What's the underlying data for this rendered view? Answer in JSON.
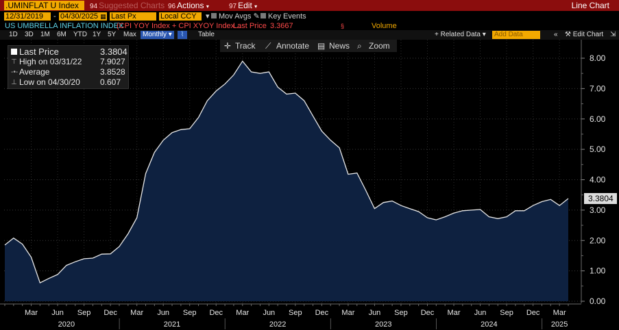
{
  "topbar": {
    "ticker": ".UMINFLAT U Index",
    "suggested_num": "94",
    "suggested": "Suggested Charts",
    "actions_num": "96",
    "actions": "Actions",
    "edit_num": "97",
    "edit": "Edit",
    "chart_type": "Line Chart"
  },
  "fields": {
    "start_date": "12/31/2019",
    "end_date": "04/30/2025",
    "field": "Last Px",
    "currency": "Local CCY",
    "mov_avgs": "Mov Avgs",
    "key_events": "Key Events"
  },
  "title_row": {
    "name": "US UMBRELLA INFLATION INDEX",
    "formula": "(CPI YOY Index + CPI XYOY Index...",
    "last_price_label": "Last Price",
    "last_price_value": "3.3667",
    "volume_label": "Volume"
  },
  "toolbar": {
    "periods": [
      "1D",
      "3D",
      "1M",
      "6M",
      "YTD",
      "1Y",
      "5Y",
      "Max"
    ],
    "frequency": "Monthly",
    "table": "Table",
    "related_data": "+ Related Data",
    "add_data_placeholder": "Add Data",
    "edit_chart": "Edit Chart"
  },
  "mid_tools": {
    "track": "Track",
    "annotate": "Annotate",
    "news": "News",
    "zoom": "Zoom"
  },
  "legend": {
    "last_price_label": "Last Price",
    "last_price_value": "3.3804",
    "high_label": "High on 03/31/22",
    "high_value": "7.9027",
    "average_label": "Average",
    "average_value": "3.8528",
    "low_label": "Low on 04/30/20",
    "low_value": "0.607"
  },
  "colors": {
    "area_fill": "#0e2140",
    "line": "#e8e8e8",
    "accent": "#f2a900",
    "topbar": "#8b0d0d"
  },
  "chart_data": {
    "type": "area",
    "ylim": [
      0,
      8.4
    ],
    "y_ticks": [
      "0.00",
      "1.00",
      "2.00",
      "3.00",
      "4.00",
      "5.00",
      "6.00",
      "7.00",
      "8.00"
    ],
    "y_tick_values": [
      0,
      1,
      2,
      3,
      4,
      5,
      6,
      7,
      8
    ],
    "last_value_label": "3.3804",
    "x_month_labels": [
      {
        "label": "Mar",
        "month": "2020-03"
      },
      {
        "label": "Jun",
        "month": "2020-06"
      },
      {
        "label": "Sep",
        "month": "2020-09"
      },
      {
        "label": "Dec",
        "month": "2020-12"
      },
      {
        "label": "Mar",
        "month": "2021-03"
      },
      {
        "label": "Jun",
        "month": "2021-06"
      },
      {
        "label": "Sep",
        "month": "2021-09"
      },
      {
        "label": "Dec",
        "month": "2021-12"
      },
      {
        "label": "Mar",
        "month": "2022-03"
      },
      {
        "label": "Jun",
        "month": "2022-06"
      },
      {
        "label": "Sep",
        "month": "2022-09"
      },
      {
        "label": "Dec",
        "month": "2022-12"
      },
      {
        "label": "Mar",
        "month": "2023-03"
      },
      {
        "label": "Jun",
        "month": "2023-06"
      },
      {
        "label": "Sep",
        "month": "2023-09"
      },
      {
        "label": "Dec",
        "month": "2023-12"
      },
      {
        "label": "Mar",
        "month": "2024-03"
      },
      {
        "label": "Jun",
        "month": "2024-06"
      },
      {
        "label": "Sep",
        "month": "2024-09"
      },
      {
        "label": "Dec",
        "month": "2024-12"
      },
      {
        "label": "Mar",
        "month": "2025-03"
      }
    ],
    "x_year_labels": [
      {
        "label": "2020",
        "month": "2020-07"
      },
      {
        "label": "2021",
        "month": "2021-07"
      },
      {
        "label": "2022",
        "month": "2022-07"
      },
      {
        "label": "2023",
        "month": "2023-07"
      },
      {
        "label": "2024",
        "month": "2024-07"
      },
      {
        "label": "2025",
        "month": "2025-03"
      }
    ],
    "series": [
      {
        "values": [
          {
            "x": "2019-12",
            "y": 1.85
          },
          {
            "x": "2020-01",
            "y": 2.08
          },
          {
            "x": "2020-02",
            "y": 1.88
          },
          {
            "x": "2020-03",
            "y": 1.45
          },
          {
            "x": "2020-04",
            "y": 0.607
          },
          {
            "x": "2020-05",
            "y": 0.75
          },
          {
            "x": "2020-06",
            "y": 0.88
          },
          {
            "x": "2020-07",
            "y": 1.18
          },
          {
            "x": "2020-08",
            "y": 1.3
          },
          {
            "x": "2020-09",
            "y": 1.4
          },
          {
            "x": "2020-10",
            "y": 1.42
          },
          {
            "x": "2020-11",
            "y": 1.55
          },
          {
            "x": "2020-12",
            "y": 1.56
          },
          {
            "x": "2021-01",
            "y": 1.8
          },
          {
            "x": "2021-02",
            "y": 2.22
          },
          {
            "x": "2021-03",
            "y": 2.75
          },
          {
            "x": "2021-04",
            "y": 4.2
          },
          {
            "x": "2021-05",
            "y": 4.9
          },
          {
            "x": "2021-06",
            "y": 5.3
          },
          {
            "x": "2021-07",
            "y": 5.55
          },
          {
            "x": "2021-08",
            "y": 5.65
          },
          {
            "x": "2021-09",
            "y": 5.68
          },
          {
            "x": "2021-10",
            "y": 6.05
          },
          {
            "x": "2021-11",
            "y": 6.6
          },
          {
            "x": "2021-12",
            "y": 6.92
          },
          {
            "x": "2022-01",
            "y": 7.15
          },
          {
            "x": "2022-02",
            "y": 7.45
          },
          {
            "x": "2022-03",
            "y": 7.9027
          },
          {
            "x": "2022-04",
            "y": 7.55
          },
          {
            "x": "2022-05",
            "y": 7.5
          },
          {
            "x": "2022-06",
            "y": 7.55
          },
          {
            "x": "2022-07",
            "y": 7.05
          },
          {
            "x": "2022-08",
            "y": 6.82
          },
          {
            "x": "2022-09",
            "y": 6.85
          },
          {
            "x": "2022-10",
            "y": 6.6
          },
          {
            "x": "2022-11",
            "y": 6.1
          },
          {
            "x": "2022-12",
            "y": 5.6
          },
          {
            "x": "2023-01",
            "y": 5.3
          },
          {
            "x": "2023-02",
            "y": 5.05
          },
          {
            "x": "2023-03",
            "y": 4.18
          },
          {
            "x": "2023-04",
            "y": 4.22
          },
          {
            "x": "2023-05",
            "y": 3.65
          },
          {
            "x": "2023-06",
            "y": 3.05
          },
          {
            "x": "2023-07",
            "y": 3.25
          },
          {
            "x": "2023-08",
            "y": 3.3
          },
          {
            "x": "2023-09",
            "y": 3.15
          },
          {
            "x": "2023-10",
            "y": 3.05
          },
          {
            "x": "2023-11",
            "y": 2.95
          },
          {
            "x": "2023-12",
            "y": 2.75
          },
          {
            "x": "2024-01",
            "y": 2.68
          },
          {
            "x": "2024-02",
            "y": 2.78
          },
          {
            "x": "2024-03",
            "y": 2.9
          },
          {
            "x": "2024-04",
            "y": 2.98
          },
          {
            "x": "2024-05",
            "y": 3.0
          },
          {
            "x": "2024-06",
            "y": 3.02
          },
          {
            "x": "2024-07",
            "y": 2.78
          },
          {
            "x": "2024-08",
            "y": 2.72
          },
          {
            "x": "2024-09",
            "y": 2.78
          },
          {
            "x": "2024-10",
            "y": 2.98
          },
          {
            "x": "2024-11",
            "y": 2.98
          },
          {
            "x": "2024-12",
            "y": 3.15
          },
          {
            "x": "2025-01",
            "y": 3.28
          },
          {
            "x": "2025-02",
            "y": 3.35
          },
          {
            "x": "2025-03",
            "y": 3.15
          },
          {
            "x": "2025-04",
            "y": 3.3804
          }
        ]
      }
    ]
  }
}
